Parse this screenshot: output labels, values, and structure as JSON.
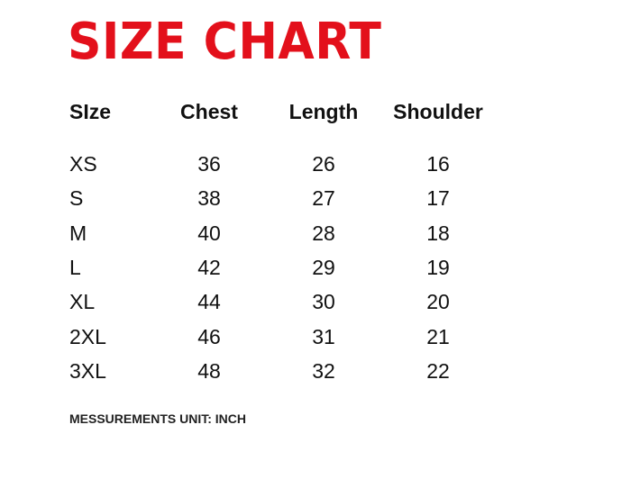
{
  "title": "SIZE CHART",
  "title_color": "#e3101b",
  "table": {
    "headers": [
      "SIze",
      "Chest",
      "Length",
      "Shoulder"
    ],
    "rows": [
      [
        "XS",
        "36",
        "26",
        "16"
      ],
      [
        "S",
        "38",
        "27",
        "17"
      ],
      [
        "M",
        "40",
        "28",
        "18"
      ],
      [
        "L",
        "42",
        "29",
        "19"
      ],
      [
        "XL",
        "44",
        "30",
        "20"
      ],
      [
        "2XL",
        "46",
        "31",
        "21"
      ],
      [
        "3XL",
        "48",
        "32",
        "22"
      ]
    ]
  },
  "footer": "MESSUREMENTS UNIT: INCH"
}
